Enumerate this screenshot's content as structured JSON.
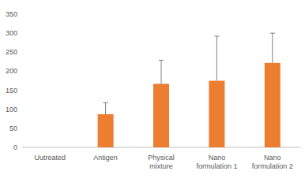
{
  "chart_data": {
    "type": "bar",
    "categories": [
      "Uutreated",
      "Antigen",
      "Physical mixture",
      "Nano formulation 1",
      "Nano formulation 2"
    ],
    "values": [
      0,
      87,
      167,
      175,
      222
    ],
    "errors": [
      null,
      30,
      62,
      117,
      78
    ],
    "color": "#ed7d31",
    "ylim": [
      0,
      350
    ],
    "yticks": [
      0,
      50,
      100,
      150,
      200,
      250,
      300,
      350
    ],
    "grid": false
  }
}
